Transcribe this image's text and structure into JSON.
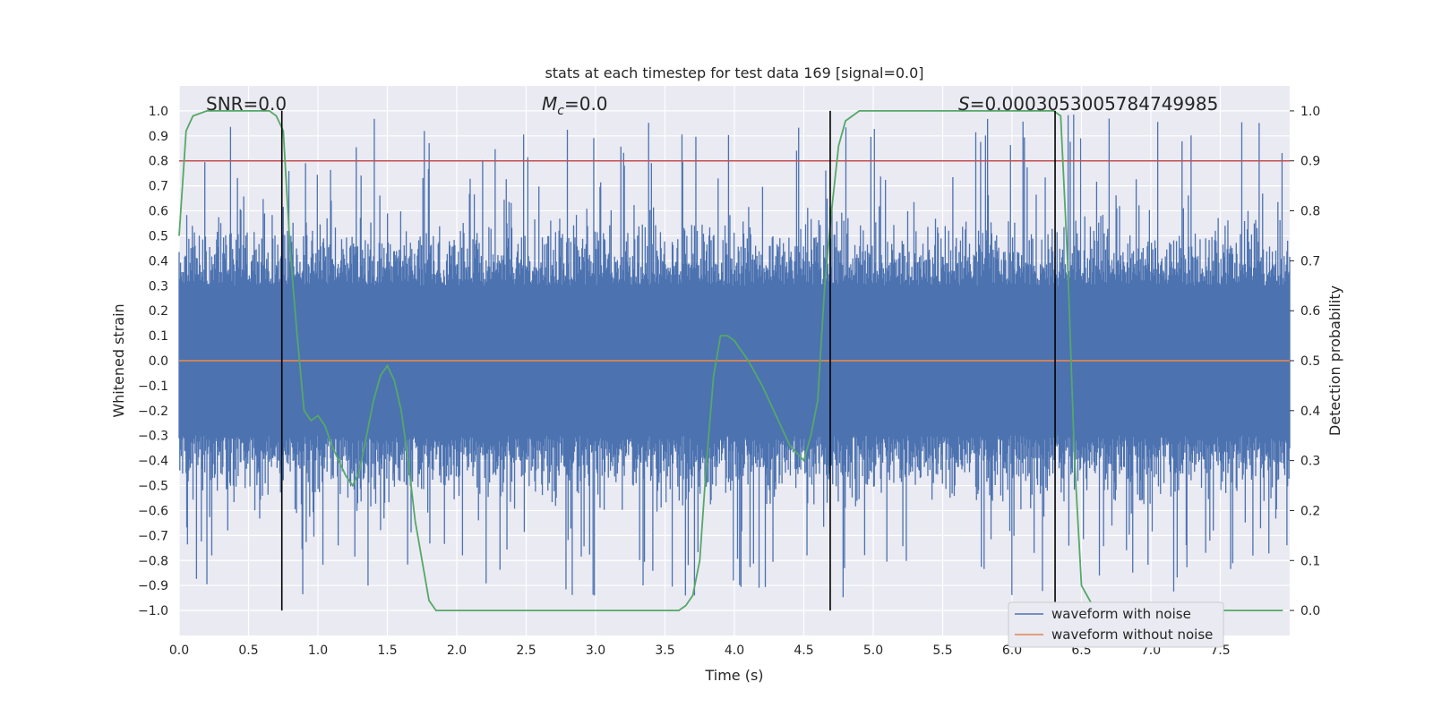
{
  "chart_data": {
    "type": "line",
    "title": "stats at each timestep for test data 169 [signal=0.0]",
    "xlabel": "Time (s)",
    "ylabel": "Whitened strain",
    "y2label": "Detection probability",
    "xlim": [
      0.0,
      8.0
    ],
    "ylim": [
      -1.1,
      1.1
    ],
    "y2lim": [
      -0.05,
      1.05
    ],
    "xticks": [
      "0.0",
      "0.5",
      "1.0",
      "1.5",
      "2.0",
      "2.5",
      "3.0",
      "3.5",
      "4.0",
      "4.5",
      "5.0",
      "5.5",
      "6.0",
      "6.5",
      "7.0",
      "7.5"
    ],
    "yticks": [
      "1.0",
      "0.9",
      "0.8",
      "0.7",
      "0.6",
      "0.5",
      "0.4",
      "0.3",
      "0.2",
      "0.1",
      "0.0",
      "−0.1",
      "−0.2",
      "−0.3",
      "−0.4",
      "−0.5",
      "−0.6",
      "−0.7",
      "−0.8",
      "−0.9",
      "−1.0"
    ],
    "y2ticks": [
      "1.0",
      "0.9",
      "0.8",
      "0.7",
      "0.6",
      "0.5",
      "0.4",
      "0.3",
      "0.2",
      "0.1",
      "0.0"
    ],
    "annotations": {
      "snr": "SNR=0.0",
      "mc_symbol": "M",
      "mc_sub": "c",
      "mc_value": "=0.0",
      "s_symbol": "S",
      "s_value": "=0.0003053005784749985"
    },
    "threshold": {
      "value": 0.9,
      "axis": "y2",
      "color": "#c44e52"
    },
    "vlines": [
      0.74,
      4.69,
      6.31
    ],
    "series": [
      {
        "name": "waveform with noise",
        "color": "#4c72b0",
        "kind": "noise-band",
        "core_amplitude": 0.3,
        "peak_amplitude": 1.0,
        "samples": 1600,
        "seed": 169
      },
      {
        "name": "waveform without noise",
        "color": "#dd8452",
        "x": [
          0.0,
          8.0
        ],
        "y": [
          0.0,
          0.0
        ]
      },
      {
        "name": "detection probability",
        "color": "#55a868",
        "axis": "y2",
        "x": [
          0.0,
          0.05,
          0.1,
          0.2,
          0.3,
          0.5,
          0.65,
          0.7,
          0.75,
          0.8,
          0.85,
          0.9,
          0.95,
          1.0,
          1.05,
          1.1,
          1.2,
          1.25,
          1.3,
          1.35,
          1.4,
          1.45,
          1.5,
          1.55,
          1.6,
          1.65,
          1.7,
          1.8,
          1.85,
          1.9,
          2.0,
          2.2,
          2.4,
          2.6,
          3.0,
          3.3,
          3.5,
          3.6,
          3.65,
          3.7,
          3.75,
          3.8,
          3.85,
          3.9,
          3.95,
          4.0,
          4.1,
          4.2,
          4.3,
          4.4,
          4.5,
          4.55,
          4.6,
          4.65,
          4.7,
          4.75,
          4.8,
          4.9,
          5.0,
          6.0,
          6.3,
          6.35,
          6.4,
          6.45,
          6.5,
          6.6,
          6.8,
          7.0,
          7.95
        ],
        "y": [
          0.75,
          0.96,
          0.99,
          1.0,
          1.0,
          1.0,
          1.0,
          0.99,
          0.96,
          0.72,
          0.55,
          0.4,
          0.38,
          0.39,
          0.37,
          0.33,
          0.27,
          0.25,
          0.28,
          0.35,
          0.42,
          0.47,
          0.49,
          0.46,
          0.4,
          0.3,
          0.18,
          0.02,
          0.0,
          0.0,
          0.0,
          0.0,
          0.0,
          0.0,
          0.0,
          0.0,
          0.0,
          0.0,
          0.01,
          0.03,
          0.1,
          0.3,
          0.47,
          0.55,
          0.55,
          0.54,
          0.5,
          0.45,
          0.39,
          0.33,
          0.3,
          0.35,
          0.42,
          0.65,
          0.8,
          0.93,
          0.98,
          1.0,
          1.0,
          1.0,
          1.0,
          0.99,
          0.7,
          0.3,
          0.05,
          0.0,
          0.0,
          0.0,
          0.0
        ]
      }
    ],
    "legend": {
      "position": "lower-right",
      "entries": [
        "waveform with noise",
        "waveform without noise"
      ]
    }
  }
}
